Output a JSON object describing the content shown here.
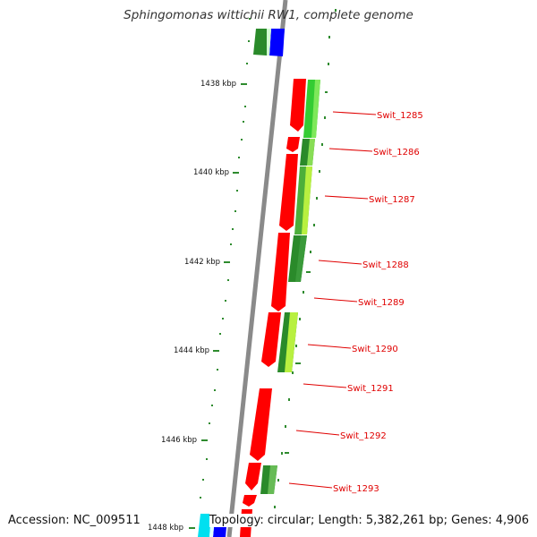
{
  "title": "Sphingomonas wittichii RW1, complete genome",
  "footer": {
    "accession": "Accession: NC_009511",
    "topology": "Topology: circular; Length: 5,382,261 bp; Genes: 4,906"
  },
  "colors": {
    "backbone": "#8a8a8a",
    "cds": "#ff0000",
    "tick": "#2e8b2e",
    "label": "#e00000",
    "green_dark": "#2a8a2a",
    "green_light": "#7ee85a",
    "lime": "#b8f040",
    "blue": "#0000ff",
    "cyan": "#00e0f0"
  },
  "kbp_labels": [
    "1438 kbp",
    "1440 kbp",
    "1442 kbp",
    "1444 kbp",
    "1446 kbp",
    "1448 kbp"
  ],
  "gene_labels": [
    "Swit_1285",
    "Swit_1286",
    "Swit_1287",
    "Swit_1288",
    "Swit_1289",
    "Swit_1290",
    "Swit_1291",
    "Swit_1292",
    "Swit_1293"
  ]
}
